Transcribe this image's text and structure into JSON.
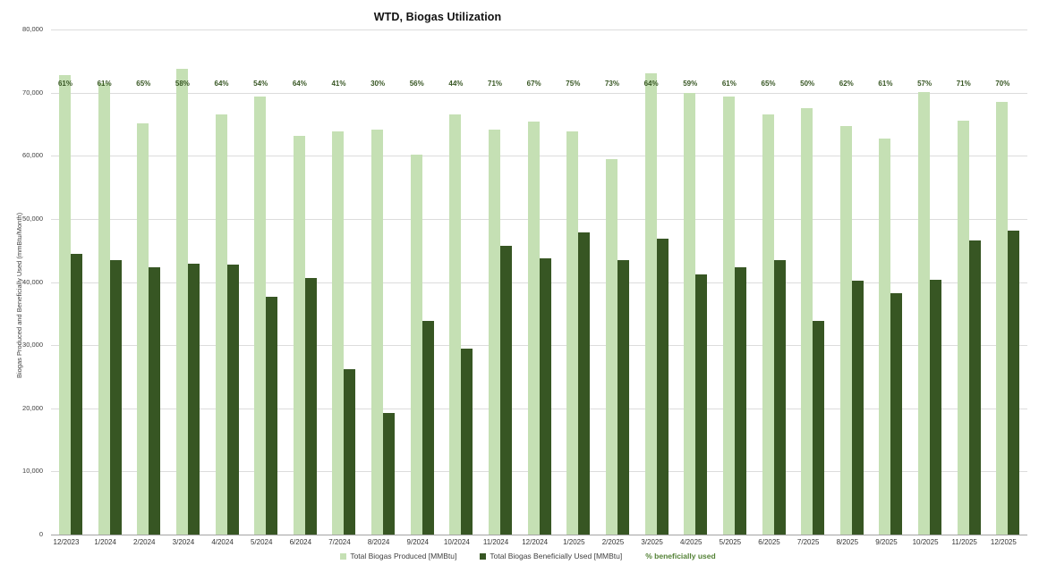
{
  "title": "WTD, Biogas Utilization",
  "y_axis_title": "Biogas Produced and Beneficially Used (mmBtu/Month)",
  "legend": {
    "produced": "Total Biogas Produced [MMBtu]",
    "used": "Total Biogas Beneficially Used [MMBtu]",
    "pct": "% beneficially used"
  },
  "colors": {
    "produced_bar": "#c5e0b4",
    "used_bar": "#375623",
    "pct_text": "#375623",
    "legend_pct_text": "#538135",
    "gridline": "#dcdcdc",
    "axis_line": "#a3a3a3"
  },
  "chart_data": {
    "type": "bar",
    "title": "WTD, Biogas Utilization",
    "xlabel": "",
    "ylabel": "Biogas Produced and Beneficially Used (mmBtu/Month)",
    "ylim": [
      0,
      80000
    ],
    "y_tick_labels": [
      "80,000",
      "70,000",
      "60,000",
      "50,000",
      "40,000",
      "30,000",
      "20,000",
      "10,000",
      "0"
    ],
    "y_tick_values": [
      80000,
      70000,
      60000,
      50000,
      40000,
      30000,
      20000,
      10000,
      0
    ],
    "grid": true,
    "legend_position": "bottom",
    "categories": [
      "12/2023",
      "1/2024",
      "2/2024",
      "3/2024",
      "4/2024",
      "5/2024",
      "6/2024",
      "7/2024",
      "8/2024",
      "9/2024",
      "10/2024",
      "11/2024",
      "12/2024",
      "1/2025",
      "2/2025",
      "3/2025",
      "4/2025",
      "5/2025",
      "6/2025",
      "7/2025",
      "8/2025",
      "9/2025",
      "10/2025",
      "11/2025",
      "12/2025"
    ],
    "series": [
      {
        "name": "Total Biogas Produced [MMBtu]",
        "values": [
          72800,
          71500,
          65200,
          73800,
          66500,
          69400,
          63200,
          63900,
          64100,
          60200,
          66500,
          64100,
          65400,
          63900,
          59500,
          73100,
          69900,
          69400,
          66600,
          67500,
          64700,
          62700,
          70100,
          65600,
          68600
        ]
      },
      {
        "name": "Total Biogas Beneficially Used [MMBtu]",
        "values": [
          44400,
          43500,
          42400,
          42900,
          42700,
          37700,
          40600,
          26200,
          19300,
          33900,
          29400,
          45800,
          43800,
          47900,
          43500,
          46800,
          41200,
          42300,
          43400,
          33800,
          40200,
          38200,
          40300,
          46600,
          48100
        ]
      },
      {
        "name": "% beneficially used",
        "unit": "%",
        "values": [
          61,
          61,
          65,
          58,
          64,
          54,
          64,
          41,
          30,
          56,
          44,
          71,
          67,
          75,
          73,
          64,
          59,
          61,
          65,
          50,
          62,
          61,
          57,
          71,
          70
        ]
      }
    ]
  }
}
